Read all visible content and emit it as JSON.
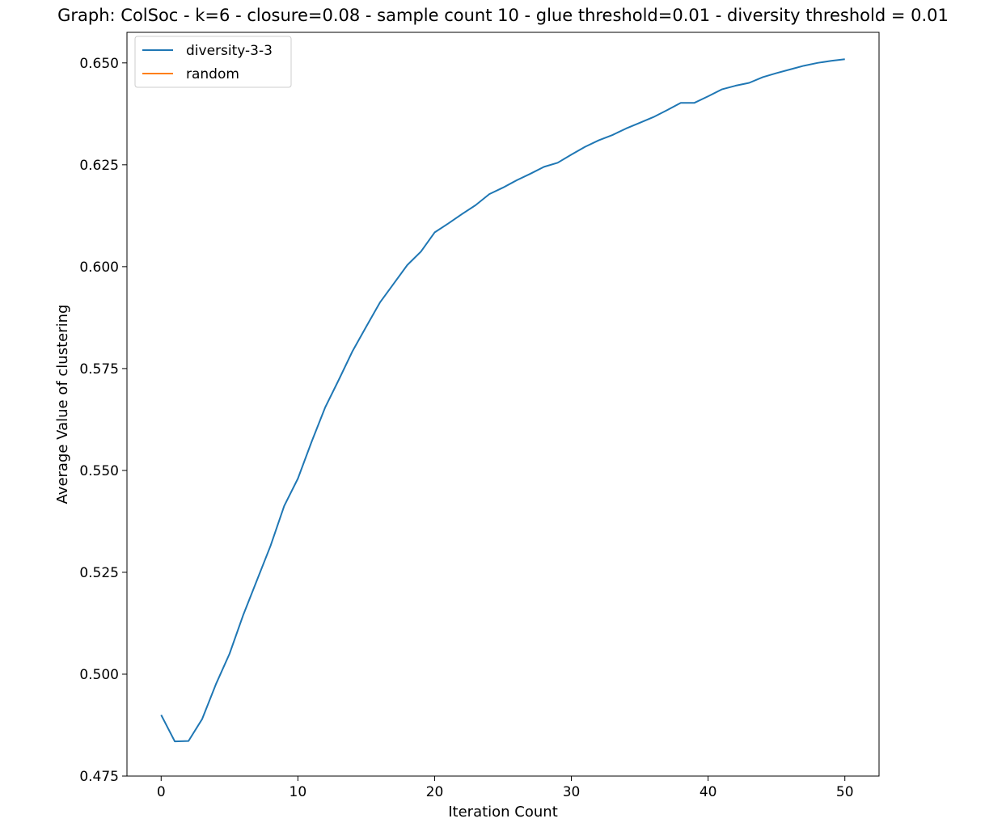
{
  "chart_data": {
    "type": "line",
    "title": "Graph: ColSoc - k=6 - closure=0.08 - sample count 10 - glue threshold=0.01 - diversity threshold = 0.01",
    "xlabel": "Iteration Count",
    "ylabel": "Average Value of clustering",
    "xlim": [
      -2.5,
      52.5
    ],
    "ylim": [
      0.475,
      0.6575
    ],
    "xticks": [
      0,
      10,
      20,
      30,
      40,
      50
    ],
    "yticks": [
      0.475,
      0.5,
      0.525,
      0.55,
      0.575,
      0.6,
      0.625,
      0.65
    ],
    "xtick_labels": [
      "0",
      "10",
      "20",
      "30",
      "40",
      "50"
    ],
    "ytick_labels": [
      "0.475",
      "0.500",
      "0.525",
      "0.550",
      "0.575",
      "0.600",
      "0.625",
      "0.650"
    ],
    "grid": false,
    "legend": "upper-left",
    "series": [
      {
        "name": "diversity-3-3",
        "color": "#1f77b4",
        "x": [
          0,
          1,
          2,
          3,
          4,
          5,
          6,
          7,
          8,
          9,
          10,
          11,
          12,
          13,
          14,
          15,
          16,
          17,
          18,
          19,
          20,
          21,
          22,
          23,
          24,
          25,
          26,
          27,
          28,
          29,
          30,
          31,
          32,
          33,
          34,
          35,
          36,
          37,
          38,
          39,
          40,
          41,
          42,
          43,
          44,
          45,
          46,
          47,
          48,
          49,
          50
        ],
        "values": [
          0.49,
          0.4835,
          0.4836,
          0.489,
          0.4975,
          0.505,
          0.5145,
          0.523,
          0.5315,
          0.5413,
          0.548,
          0.557,
          0.5655,
          0.5723,
          0.5793,
          0.5853,
          0.5912,
          0.5958,
          0.6004,
          0.6037,
          0.6084,
          0.6106,
          0.6129,
          0.6151,
          0.6178,
          0.6194,
          0.6212,
          0.6228,
          0.6245,
          0.6255,
          0.6275,
          0.6294,
          0.631,
          0.6323,
          0.6339,
          0.6353,
          0.6367,
          0.6384,
          0.6402,
          0.6402,
          0.6418,
          0.6435,
          0.6444,
          0.6451,
          0.6465,
          0.6475,
          0.6484,
          0.6493,
          0.65,
          0.6505,
          0.6509
        ]
      },
      {
        "name": "random",
        "color": "#ff7f0e",
        "x": [],
        "values": []
      }
    ]
  }
}
